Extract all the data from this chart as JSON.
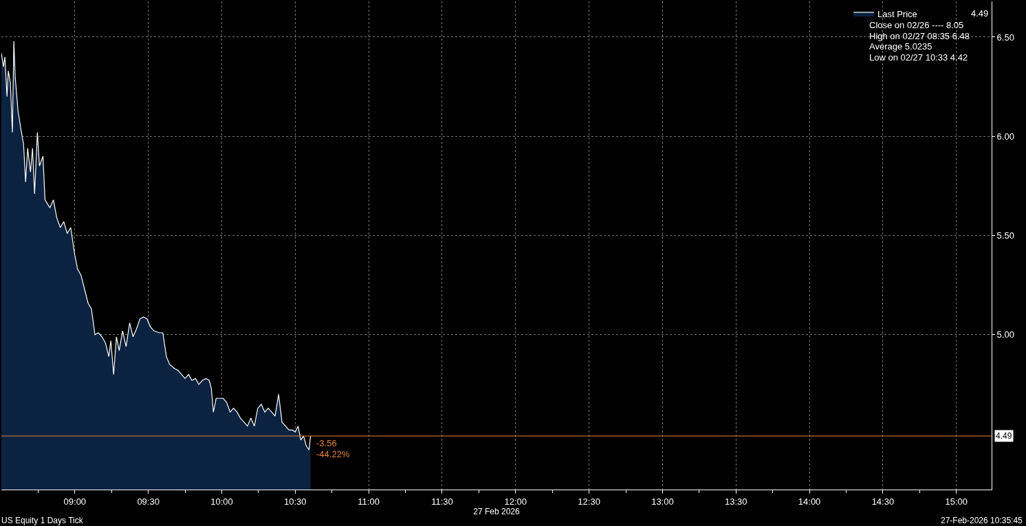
{
  "chart_data": {
    "type": "area",
    "xlabel": "27 Feb 2026",
    "x": [
      8.5,
      8.514,
      8.524,
      8.538,
      8.547,
      8.561,
      8.575,
      8.585,
      8.594,
      8.613,
      8.632,
      8.651,
      8.665,
      8.679,
      8.698,
      8.712,
      8.726,
      8.745,
      8.759,
      8.783,
      8.797,
      8.83,
      8.854,
      8.877,
      8.901,
      8.925,
      8.948,
      8.972,
      9.0,
      9.019,
      9.042,
      9.066,
      9.09,
      9.113,
      9.137,
      9.16,
      9.184,
      9.208,
      9.231,
      9.245,
      9.264,
      9.283,
      9.302,
      9.325,
      9.349,
      9.373,
      9.396,
      9.42,
      9.443,
      9.467,
      9.491,
      9.514,
      9.538,
      9.575,
      9.599,
      9.623,
      9.646,
      9.679,
      9.703,
      9.726,
      9.75,
      9.774,
      9.797,
      9.821,
      9.844,
      9.868,
      9.892,
      9.915,
      9.929,
      9.943,
      9.962,
      9.986,
      10.009,
      10.033,
      10.057,
      10.08,
      10.104,
      10.127,
      10.151,
      10.175,
      10.198,
      10.222,
      10.245,
      10.269,
      10.293,
      10.316,
      10.34,
      10.363,
      10.387,
      10.41,
      10.434,
      10.457,
      10.481,
      10.5,
      10.519,
      10.538,
      10.557,
      10.575,
      10.594,
      10.604
    ],
    "series": [
      {
        "name": "Last Price",
        "color": "#0b2341",
        "values": [
          6.42,
          6.35,
          6.4,
          6.2,
          6.33,
          6.27,
          6.02,
          6.48,
          6.3,
          6.13,
          6.04,
          5.96,
          5.77,
          5.94,
          5.82,
          5.94,
          5.71,
          6.02,
          5.85,
          5.9,
          5.68,
          5.64,
          5.68,
          5.59,
          5.54,
          5.57,
          5.51,
          5.54,
          5.4,
          5.33,
          5.3,
          5.23,
          5.16,
          5.13,
          5.0,
          5.01,
          4.99,
          4.96,
          4.89,
          4.97,
          4.8,
          4.99,
          4.92,
          5.02,
          4.94,
          5.06,
          4.99,
          5.03,
          5.08,
          5.09,
          5.08,
          5.04,
          5.02,
          5.01,
          5.01,
          4.89,
          4.85,
          4.83,
          4.82,
          4.8,
          4.78,
          4.8,
          4.77,
          4.78,
          4.75,
          4.77,
          4.78,
          4.77,
          4.73,
          4.61,
          4.68,
          4.68,
          4.68,
          4.66,
          4.61,
          4.63,
          4.61,
          4.58,
          4.56,
          4.54,
          4.58,
          4.54,
          4.63,
          4.65,
          4.61,
          4.63,
          4.61,
          4.59,
          4.7,
          4.56,
          4.54,
          4.52,
          4.52,
          4.51,
          4.54,
          4.47,
          4.49,
          4.44,
          4.42,
          4.49
        ]
      }
    ],
    "xlim": [
      8.5,
      15.24
    ],
    "xticks": [
      {
        "value": 8.75,
        "label": null
      },
      {
        "value": 9,
        "label": "09:00"
      },
      {
        "value": 9.25,
        "label": null
      },
      {
        "value": 9.5,
        "label": "09:30"
      },
      {
        "value": 9.75,
        "label": null
      },
      {
        "value": 10,
        "label": "10:00"
      },
      {
        "value": 10.25,
        "label": null
      },
      {
        "value": 10.5,
        "label": "10:30"
      },
      {
        "value": 10.75,
        "label": null
      },
      {
        "value": 11,
        "label": "11:00"
      },
      {
        "value": 11.25,
        "label": null
      },
      {
        "value": 11.5,
        "label": "11:30"
      },
      {
        "value": 11.75,
        "label": null
      },
      {
        "value": 12,
        "label": "12:00"
      },
      {
        "value": 12.25,
        "label": null
      },
      {
        "value": 12.5,
        "label": "12:30"
      },
      {
        "value": 12.75,
        "label": null
      },
      {
        "value": 13,
        "label": "13:00"
      },
      {
        "value": 13.25,
        "label": null
      },
      {
        "value": 13.5,
        "label": "13:30"
      },
      {
        "value": 13.75,
        "label": null
      },
      {
        "value": 14,
        "label": "14:00"
      },
      {
        "value": 14.25,
        "label": null
      },
      {
        "value": 14.5,
        "label": "14:30"
      },
      {
        "value": 14.75,
        "label": null
      },
      {
        "value": 15,
        "label": "15:00"
      }
    ],
    "ylim": [
      4.22,
      6.68
    ],
    "yticks": [
      {
        "value": 5,
        "label": "5.00"
      },
      {
        "value": 5.5,
        "label": "5.50"
      },
      {
        "value": 6,
        "label": "6.00"
      },
      {
        "value": 6.5,
        "label": "6.50"
      }
    ],
    "ref_lines": [
      {
        "axis": "y",
        "value": 4.49,
        "label": "4.49",
        "color": "#e8823a"
      }
    ],
    "annotations": [
      "4.49",
      "Close on 02/26 ---- 8.05",
      "High on 02/27 08:35 6.48",
      "Average 5.0235",
      "Low on 02/27 10:33 4.42",
      "-3.56",
      "-44.22%",
      "US Equity 1 Days Tick",
      "27-Feb-2026 10:35:45"
    ],
    "grid": true,
    "legend": "top right",
    "line_style": "solid",
    "marker": "none"
  }
}
